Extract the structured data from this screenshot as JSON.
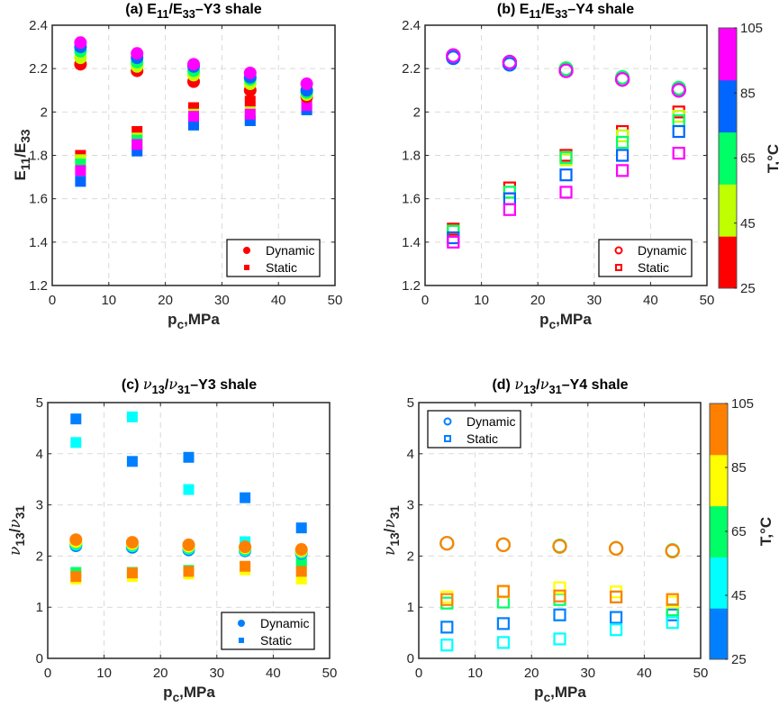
{
  "chart_data": [
    {
      "type": "scatter",
      "title_parts": [
        {
          "t": "(a) E"
        },
        {
          "t": "11",
          "sub": true
        },
        {
          "t": "/E"
        },
        {
          "t": "33",
          "sub": true
        },
        {
          "t": "–Y3 shale"
        }
      ],
      "xlabel_parts": [
        {
          "t": "p"
        },
        {
          "t": "c",
          "sub": true
        },
        {
          "t": ",MPa"
        }
      ],
      "ylabel_parts": [
        {
          "t": "E"
        },
        {
          "t": "11",
          "sub": true
        },
        {
          "t": "/E"
        },
        {
          "t": "33",
          "sub": true
        }
      ],
      "xlim": [
        0,
        50
      ],
      "ylim": [
        1.2,
        2.4
      ],
      "xticks": [
        0,
        10,
        20,
        30,
        40,
        50
      ],
      "xtick_labels": [
        "0",
        "10",
        "20",
        "30",
        "40",
        "50"
      ],
      "yticks": [
        1.2,
        1.4,
        1.6,
        1.8,
        2.0,
        2.2,
        2.4
      ],
      "ytick_labels": [
        "1.2",
        "1.4",
        "1.6",
        "1.8",
        "2",
        "2.2",
        "2.4"
      ],
      "grid": true,
      "marker_fill": "filled",
      "legend": {
        "position": "bottom-right",
        "entries": [
          "Dynamic",
          "Static"
        ],
        "color": "#ff0000"
      },
      "x": [
        5,
        15,
        25,
        35,
        45
      ],
      "series": [
        {
          "temperature": 25,
          "color": "#ff0000",
          "dynamic": [
            2.22,
            2.19,
            2.14,
            2.1,
            2.07
          ],
          "static": [
            1.8,
            1.91,
            2.02,
            2.05,
            2.1
          ]
        },
        {
          "temperature": 45,
          "color": "#bfff00",
          "dynamic": [
            2.25,
            2.21,
            2.17,
            2.13,
            2.08
          ],
          "static": [
            1.78,
            1.88,
            1.99,
            2.0,
            2.07
          ]
        },
        {
          "temperature": 65,
          "color": "#00ff66",
          "dynamic": [
            2.28,
            2.23,
            2.19,
            2.15,
            2.09
          ],
          "static": [
            1.76,
            1.87,
            1.94,
            1.96,
            2.06
          ]
        },
        {
          "temperature": 85,
          "color": "#0066ff",
          "dynamic": [
            2.3,
            2.25,
            2.21,
            2.16,
            2.1
          ],
          "static": [
            1.68,
            1.82,
            1.94,
            1.96,
            2.01
          ]
        },
        {
          "temperature": 105,
          "color": "#ff00ff",
          "dynamic": [
            2.32,
            2.27,
            2.22,
            2.18,
            2.13
          ],
          "static": [
            1.73,
            1.85,
            1.98,
            1.99,
            2.03
          ]
        }
      ]
    },
    {
      "type": "scatter",
      "title_parts": [
        {
          "t": "(b) E"
        },
        {
          "t": "11",
          "sub": true
        },
        {
          "t": "/E"
        },
        {
          "t": "33",
          "sub": true
        },
        {
          "t": "–Y4 shale"
        }
      ],
      "xlabel_parts": [
        {
          "t": "p"
        },
        {
          "t": "c",
          "sub": true
        },
        {
          "t": ",MPa"
        }
      ],
      "ylabel_parts": [],
      "xlim": [
        0,
        50
      ],
      "ylim": [
        1.2,
        2.4
      ],
      "xticks": [
        0,
        10,
        20,
        30,
        40,
        50
      ],
      "xtick_labels": [
        "0",
        "10",
        "20",
        "30",
        "40",
        "50"
      ],
      "yticks": [
        1.2,
        1.4,
        1.6,
        1.8,
        2.0,
        2.2,
        2.4
      ],
      "ytick_labels": [
        "1.2",
        "1.4",
        "1.6",
        "1.8",
        "2",
        "2.2",
        "2.4"
      ],
      "grid": true,
      "marker_fill": "open",
      "legend": {
        "position": "bottom-right",
        "entries": [
          "Dynamic",
          "Static"
        ],
        "color": "#ff0000"
      },
      "colorbar": {
        "label": "T,°C",
        "ticks": [
          "25",
          "45",
          "65",
          "85",
          "105"
        ],
        "range": [
          25,
          105
        ],
        "colors": [
          "#ff0000",
          "#bfff00",
          "#00ff66",
          "#0066ff",
          "#ff00ff"
        ]
      },
      "x": [
        5,
        15,
        25,
        35,
        45
      ],
      "series": [
        {
          "temperature": 25,
          "color": "#ff0000",
          "dynamic": [
            2.26,
            2.23,
            2.19,
            2.15,
            2.1
          ],
          "static": [
            1.46,
            1.65,
            1.8,
            1.91,
            2.0
          ]
        },
        {
          "temperature": 45,
          "color": "#bfff00",
          "dynamic": [
            2.26,
            2.23,
            2.2,
            2.15,
            2.11
          ],
          "static": [
            1.45,
            1.63,
            1.78,
            1.89,
            1.98
          ]
        },
        {
          "temperature": 65,
          "color": "#00ff66",
          "dynamic": [
            2.26,
            2.23,
            2.2,
            2.16,
            2.11
          ],
          "static": [
            1.45,
            1.63,
            1.79,
            1.86,
            1.96
          ]
        },
        {
          "temperature": 85,
          "color": "#0066ff",
          "dynamic": [
            2.25,
            2.22,
            2.19,
            2.15,
            2.1
          ],
          "static": [
            1.42,
            1.6,
            1.71,
            1.8,
            1.91
          ]
        },
        {
          "temperature": 105,
          "color": "#ff00ff",
          "dynamic": [
            2.26,
            2.23,
            2.19,
            2.15,
            2.1
          ],
          "static": [
            1.4,
            1.55,
            1.63,
            1.73,
            1.81
          ]
        }
      ]
    },
    {
      "type": "scatter",
      "title_parts": [
        {
          "t": "(c) "
        },
        {
          "t": "ν",
          "it": true
        },
        {
          "t": "13",
          "sub": true
        },
        {
          "t": "/"
        },
        {
          "t": "ν",
          "it": true
        },
        {
          "t": "31",
          "sub": true
        },
        {
          "t": "–Y3 shale"
        }
      ],
      "xlabel_parts": [
        {
          "t": "p"
        },
        {
          "t": "c",
          "sub": true
        },
        {
          "t": ",MPa"
        }
      ],
      "ylabel_parts": [
        {
          "t": "ν",
          "it": true
        },
        {
          "t": "13",
          "sub": true
        },
        {
          "t": "/"
        },
        {
          "t": "ν",
          "it": true
        },
        {
          "t": "31",
          "sub": true
        }
      ],
      "xlim": [
        0,
        50
      ],
      "ylim": [
        0,
        5
      ],
      "xticks": [
        0,
        10,
        20,
        30,
        40,
        50
      ],
      "xtick_labels": [
        "0",
        "10",
        "20",
        "30",
        "40",
        "50"
      ],
      "yticks": [
        0,
        1,
        2,
        3,
        4,
        5
      ],
      "ytick_labels": [
        "0",
        "1",
        "2",
        "3",
        "4",
        "5"
      ],
      "grid": true,
      "marker_fill": "filled",
      "legend": {
        "position": "bottom-right",
        "entries": [
          "Dynamic",
          "Static"
        ],
        "color": "#0080ff"
      },
      "x": [
        5,
        15,
        25,
        35,
        45
      ],
      "series": [
        {
          "temperature": 25,
          "color": "#0080ff",
          "dynamic": [
            2.2,
            2.17,
            2.12,
            2.1,
            2.05
          ],
          "static": [
            4.68,
            3.85,
            3.93,
            3.14,
            2.55
          ]
        },
        {
          "temperature": 45,
          "color": "#00ffff",
          "dynamic": [
            2.23,
            2.2,
            2.15,
            2.12,
            2.07
          ],
          "static": [
            4.22,
            4.72,
            3.3,
            2.28,
            1.95
          ]
        },
        {
          "temperature": 65,
          "color": "#00ff66",
          "dynamic": [
            2.25,
            2.22,
            2.17,
            2.14,
            2.09
          ],
          "static": [
            1.68,
            1.68,
            1.72,
            1.78,
            1.85
          ]
        },
        {
          "temperature": 85,
          "color": "#ffff00",
          "dynamic": [
            2.28,
            2.24,
            2.19,
            2.16,
            2.1
          ],
          "static": [
            1.55,
            1.6,
            1.65,
            1.73,
            1.55
          ]
        },
        {
          "temperature": 105,
          "color": "#ff8000",
          "dynamic": [
            2.32,
            2.27,
            2.22,
            2.18,
            2.13
          ],
          "static": [
            1.6,
            1.67,
            1.7,
            1.8,
            1.7
          ]
        }
      ]
    },
    {
      "type": "scatter",
      "title_parts": [
        {
          "t": "(d) "
        },
        {
          "t": "ν",
          "it": true
        },
        {
          "t": "13",
          "sub": true
        },
        {
          "t": "/"
        },
        {
          "t": "ν",
          "it": true
        },
        {
          "t": "31",
          "sub": true
        },
        {
          "t": "–Y4 shale"
        }
      ],
      "xlabel_parts": [
        {
          "t": "p"
        },
        {
          "t": "c",
          "sub": true
        },
        {
          "t": ",MPa"
        }
      ],
      "ylabel_parts": [
        {
          "t": "ν",
          "it": true
        },
        {
          "t": "13",
          "sub": true
        },
        {
          "t": "/"
        },
        {
          "t": "ν",
          "it": true
        },
        {
          "t": "31",
          "sub": true
        }
      ],
      "xlim": [
        0,
        50
      ],
      "ylim": [
        0,
        5
      ],
      "xticks": [
        0,
        10,
        20,
        30,
        40,
        50
      ],
      "xtick_labels": [
        "0",
        "10",
        "20",
        "30",
        "40",
        "50"
      ],
      "yticks": [
        0,
        1,
        2,
        3,
        4,
        5
      ],
      "ytick_labels": [
        "0",
        "1",
        "2",
        "3",
        "4",
        "5"
      ],
      "grid": true,
      "marker_fill": "open",
      "legend": {
        "position": "top-left",
        "entries": [
          "Dynamic",
          "Static"
        ],
        "color": "#0080ff"
      },
      "colorbar": {
        "label": "T,°C",
        "ticks": [
          "25",
          "45",
          "65",
          "85",
          "105"
        ],
        "range": [
          25,
          105
        ],
        "colors": [
          "#0080ff",
          "#00ffff",
          "#00ff66",
          "#ffff00",
          "#ff8000"
        ]
      },
      "x": [
        5,
        15,
        25,
        35,
        45
      ],
      "series": [
        {
          "temperature": 25,
          "color": "#0080ff",
          "dynamic": [
            2.25,
            2.22,
            2.19,
            2.15,
            2.1
          ],
          "static": [
            0.61,
            0.68,
            0.85,
            0.8,
            0.85
          ]
        },
        {
          "temperature": 45,
          "color": "#00ffff",
          "dynamic": [
            2.25,
            2.22,
            2.19,
            2.15,
            2.1
          ],
          "static": [
            0.26,
            0.31,
            0.38,
            0.56,
            0.7
          ]
        },
        {
          "temperature": 65,
          "color": "#00ff66",
          "dynamic": [
            2.25,
            2.22,
            2.2,
            2.15,
            2.11
          ],
          "static": [
            1.08,
            1.1,
            1.15,
            1.2,
            0.95
          ]
        },
        {
          "temperature": 85,
          "color": "#ffff00",
          "dynamic": [
            2.25,
            2.22,
            2.19,
            2.15,
            2.1
          ],
          "static": [
            1.2,
            1.3,
            1.38,
            1.3,
            1.1
          ]
        },
        {
          "temperature": 105,
          "color": "#ff8000",
          "dynamic": [
            2.25,
            2.22,
            2.19,
            2.15,
            2.1
          ],
          "static": [
            1.15,
            1.31,
            1.22,
            1.2,
            1.15
          ]
        }
      ]
    }
  ]
}
